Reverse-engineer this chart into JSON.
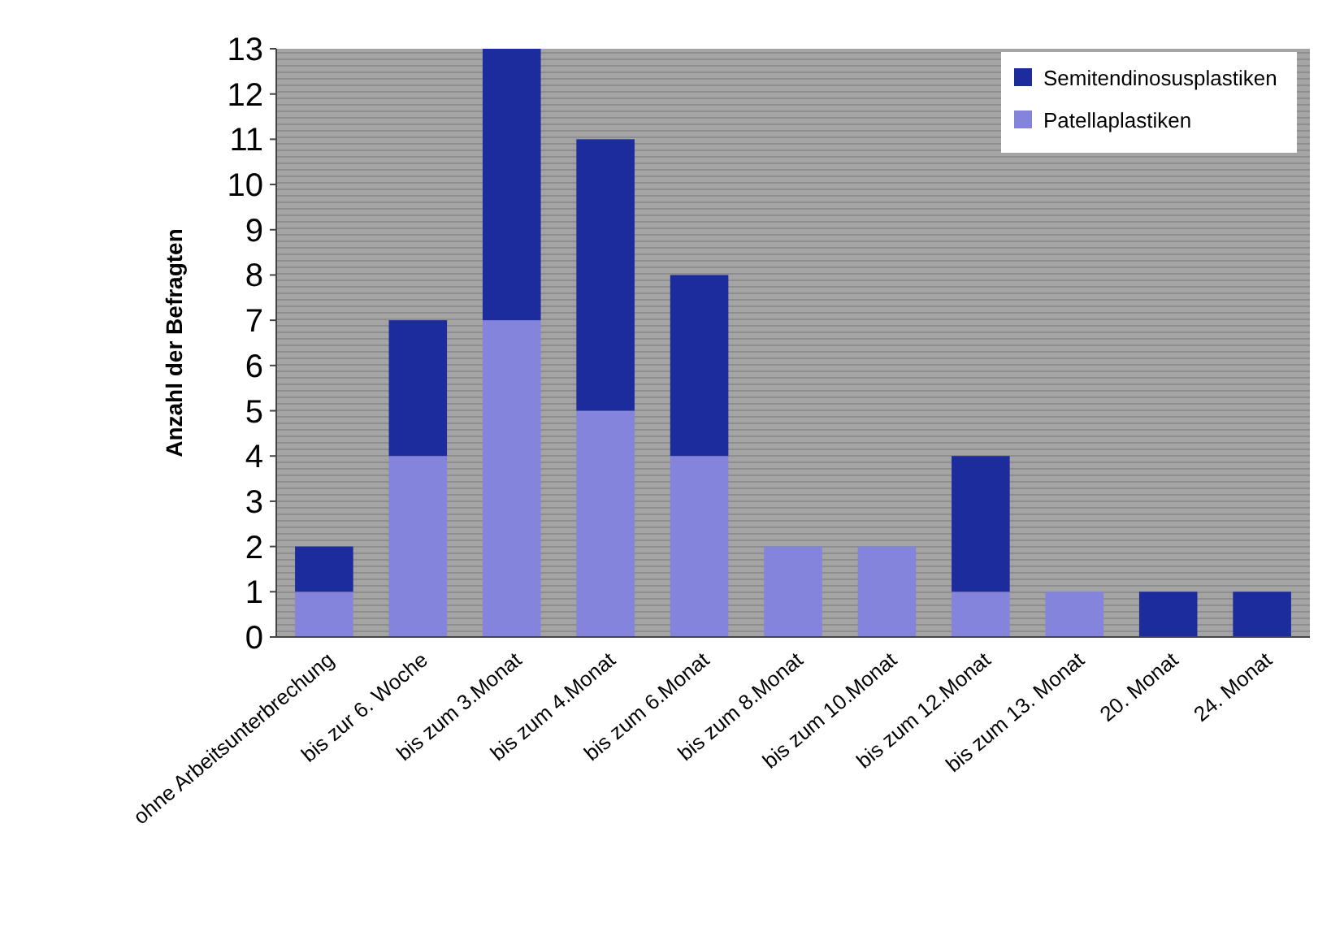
{
  "chart_data": {
    "type": "bar",
    "stacked": true,
    "ylabel": "Anzahl der Befragten",
    "categories": [
      "ohne Arbeitsunterbrechung",
      "bis zur 6. Woche",
      "bis zum 3.Monat",
      "bis zum 4.Monat",
      "bis zum 6.Monat",
      "bis zum 8.Monat",
      "bis zum 10.Monat",
      "bis zum 12.Monat",
      "bis zum 13. Monat",
      "20. Monat",
      "24. Monat"
    ],
    "series": [
      {
        "name": "Patellaplastiken",
        "color": "#8484dc",
        "values": [
          1,
          4,
          7,
          5,
          4,
          2,
          2,
          1,
          1,
          0,
          0
        ]
      },
      {
        "name": "Semitendinosusplastiken",
        "color": "#1c2c9c",
        "values": [
          1,
          3,
          6,
          6,
          4,
          0,
          0,
          3,
          0,
          1,
          1
        ]
      }
    ],
    "ylim": [
      0,
      13
    ],
    "yticks": [
      0,
      1,
      2,
      3,
      4,
      5,
      6,
      7,
      8,
      9,
      10,
      11,
      12,
      13
    ],
    "grid": false,
    "legend": "top right"
  }
}
